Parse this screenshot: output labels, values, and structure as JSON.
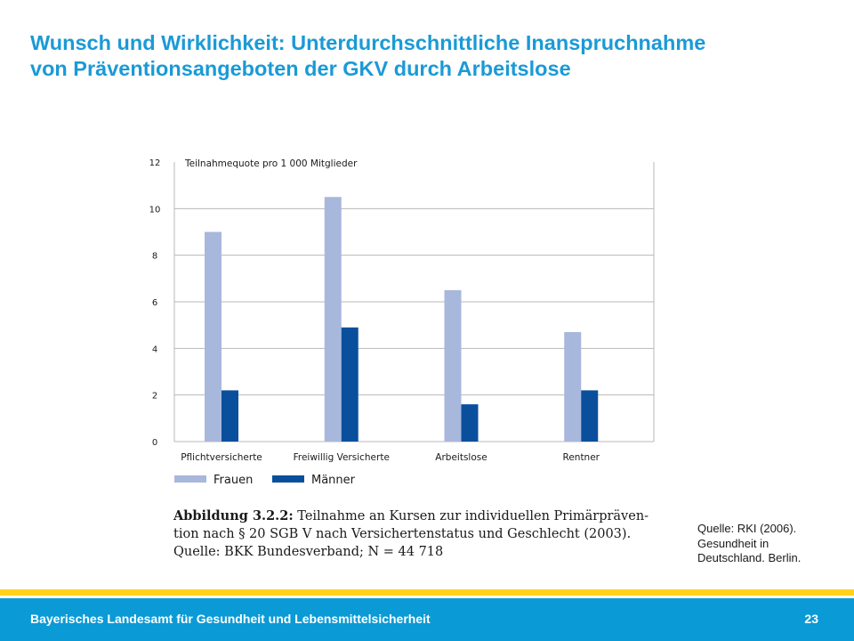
{
  "slide": {
    "title_lines": [
      "Wunsch und Wirklichkeit: Unterdurchschnittliche Inanspruchnahme",
      "von Präventionsangeboten der GKV durch Arbeitslose"
    ]
  },
  "chart_data": {
    "type": "bar",
    "title": "Teilnahmequote pro 1 000 Mitglieder",
    "categories": [
      "Pflichtversicherte",
      "Freiwillig Versicherte",
      "Arbeitslose",
      "Rentner"
    ],
    "series": [
      {
        "name": "Frauen",
        "values": [
          9.0,
          10.5,
          6.5,
          4.7
        ],
        "color": "#a8b7dc"
      },
      {
        "name": "Männer",
        "values": [
          2.2,
          4.9,
          1.6,
          2.2
        ],
        "color": "#0a4f9c"
      }
    ],
    "ylim": [
      0,
      12
    ],
    "yticks": [
      0,
      2,
      4,
      6,
      8,
      10,
      12
    ],
    "grid": true,
    "legend_position": "bottom-left"
  },
  "caption": {
    "label": "Abbildung 3.2.2:",
    "line1_rest": " Teilnahme an Kursen zur individuellen Primärpräven-",
    "line2": "tion nach § 20 SGB V nach Versichertenstatus und Geschlecht (2003).",
    "line3": "Quelle: BKK Bundesverband; N = 44 718"
  },
  "source": {
    "lines": [
      "Quelle: RKI (2006).",
      "Gesundheit in",
      "Deutschland. Berlin."
    ]
  },
  "footer": {
    "text": "Bayerisches Landesamt für Gesundheit und Lebensmittelsicherheit",
    "page": "23"
  }
}
